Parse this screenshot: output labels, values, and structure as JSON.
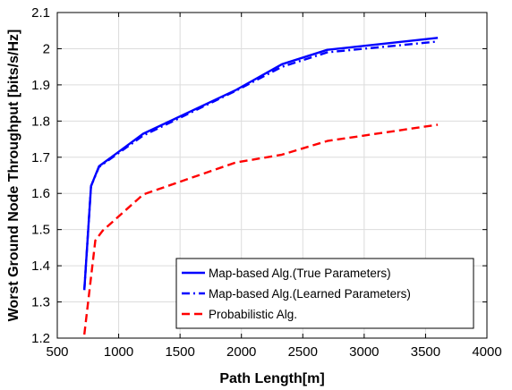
{
  "chart_data": {
    "type": "line",
    "title": "",
    "xlabel": "Path Length[m]",
    "ylabel": "Worst Ground Node Throughput [bits/s/Hz]",
    "xlim": [
      500,
      4000
    ],
    "ylim": [
      1.2,
      2.1
    ],
    "xticks": [
      "500",
      "1000",
      "1500",
      "2000",
      "2500",
      "3000",
      "3500",
      "4000"
    ],
    "yticks": [
      "1.2",
      "1.3",
      "1.4",
      "1.5",
      "1.6",
      "1.7",
      "1.8",
      "1.9",
      "2",
      "2.1"
    ],
    "grid": true,
    "legend_position": "bottom-right",
    "series": [
      {
        "name": "Map-based Alg.(True Parameters)",
        "color": "#0000ff",
        "style": "solid",
        "x": [
          720,
          775,
          840,
          1200,
          1950,
          2330,
          2700,
          3600
        ],
        "y": [
          1.333,
          1.62,
          1.675,
          1.765,
          1.885,
          1.957,
          1.997,
          2.03
        ]
      },
      {
        "name": "Map-based Alg.(Learned Parameters)",
        "color": "#0000ff",
        "style": "dashdot",
        "x": [
          720,
          775,
          840,
          1200,
          1950,
          2330,
          2700,
          3600
        ],
        "y": [
          1.333,
          1.62,
          1.673,
          1.76,
          1.883,
          1.95,
          1.99,
          2.02
        ]
      },
      {
        "name": "Probabilistic Alg.",
        "color": "#ff0000",
        "style": "dashed",
        "x": [
          720,
          810,
          870,
          1200,
          1950,
          2330,
          2700,
          3600
        ],
        "y": [
          1.21,
          1.47,
          1.497,
          1.597,
          1.685,
          1.707,
          1.745,
          1.79
        ]
      }
    ]
  }
}
